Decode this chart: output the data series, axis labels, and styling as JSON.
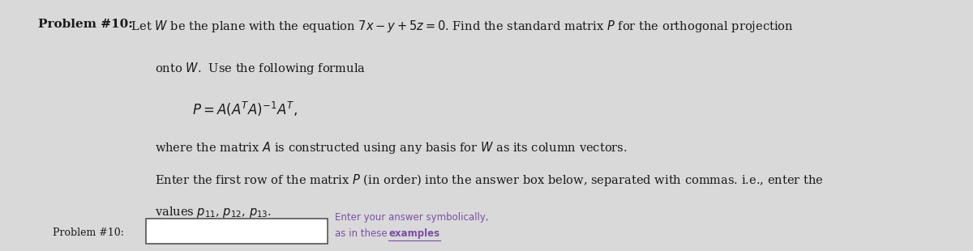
{
  "background_color": "#d9d9d9",
  "title_bold": "Problem #10:",
  "title_normal": " Let $W$ be the plane with the equation $7x - y + 5z = 0$. Find the standard matrix $P$ for the orthogonal projection",
  "line2": "onto $W$.  Use the following formula",
  "formula": "$P = A(A^{T}A)^{-1}A^{T},$",
  "line3": "where the matrix $A$ is constructed using any basis for $W$ as its column vectors.",
  "line4": "Enter the first row of the matrix $P$ (in order) into the answer box below, separated with commas. i.e., enter the",
  "line5": "values $p_{11}$, $p_{12}$, $p_{13}$.",
  "label_bottom": "Problem #10:",
  "hint_line1": "Enter your answer symbolically,",
  "hint_line2": "as in these ",
  "hint_link": "examples",
  "text_color": "#1a1a1a",
  "hint_color": "#7b4fa6",
  "link_color": "#7b4fa6"
}
